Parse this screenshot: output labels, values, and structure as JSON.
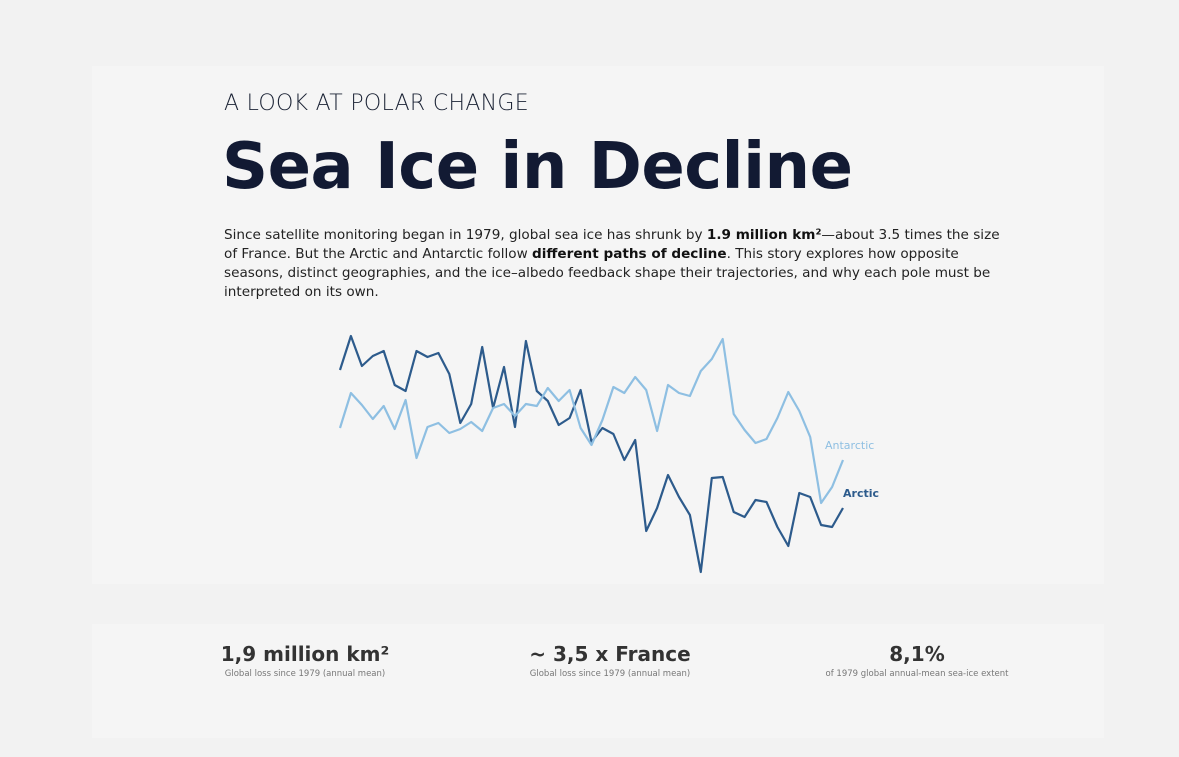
{
  "header": {
    "kicker": "A LOOK AT POLAR CHANGE",
    "title": "Sea Ice in Decline"
  },
  "intro": [
    "Since satellite monitoring began in 1979, global sea ice has shrunk by ",
    "1.9 million km²",
    "—about 3.5 times the size of France. But the Arctic and Antarctic follow ",
    "different paths of decline",
    ". This story explores how opposite seasons, distinct geographies, and the ice–albedo feedback shape their trajectories, and why each pole must be interpreted on its own."
  ],
  "chart_data": {
    "type": "line",
    "ylim": [
      20,
      270
    ],
    "series": [
      {
        "name": "Arctic",
        "color": "#2d5b8c",
        "values": [
          230,
          264,
          234,
          244,
          249,
          215,
          209,
          249,
          243,
          247,
          226,
          177,
          196,
          253,
          192,
          233,
          173,
          259,
          209,
          199,
          175,
          182,
          210,
          158,
          172,
          166,
          140,
          160,
          69,
          92,
          125,
          103,
          85,
          28,
          122,
          123,
          88,
          83,
          100,
          98,
          73,
          54,
          107,
          103,
          75,
          73,
          92
        ]
      },
      {
        "name": "Antarctic",
        "color": "#8ebfe2",
        "values": [
          172,
          207,
          195,
          181,
          194,
          171,
          200,
          142,
          173,
          177,
          167,
          171,
          178,
          169,
          192,
          196,
          184,
          196,
          194,
          212,
          199,
          210,
          172,
          155,
          180,
          213,
          207,
          223,
          210,
          169,
          215,
          207,
          204,
          229,
          241,
          261,
          186,
          170,
          157,
          161,
          182,
          208,
          189,
          163,
          97,
          113,
          140
        ]
      }
    ]
  },
  "stats": [
    {
      "value": "1,9 million km²",
      "caption": "Global loss since 1979 (annual mean)"
    },
    {
      "value": "~ 3,5 x France",
      "caption": "Global loss since 1979 (annual mean)"
    },
    {
      "value": "8,1%",
      "caption": "of 1979 global annual-mean sea-ice extent"
    }
  ]
}
